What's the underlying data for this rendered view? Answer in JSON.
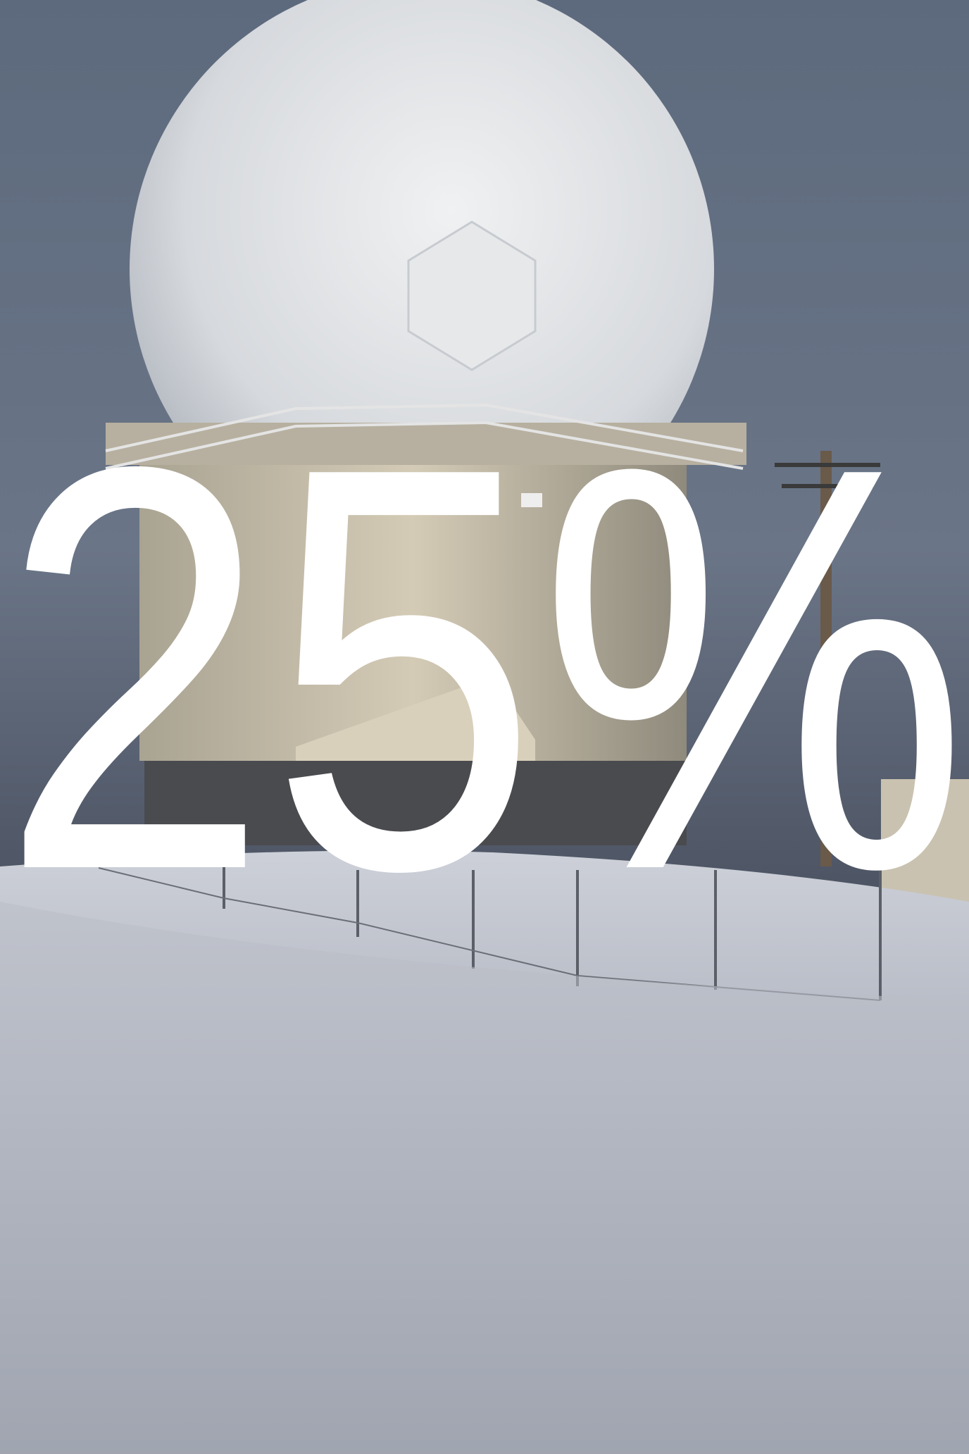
{
  "overlay": {
    "text": "25%"
  }
}
